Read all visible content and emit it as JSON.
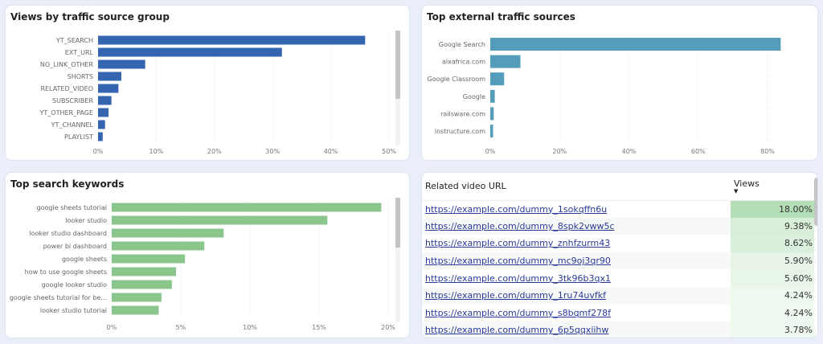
{
  "charts": [
    {
      "type": "bar",
      "orientation": "horizontal",
      "title": "Views by traffic source group",
      "color": "#3564b0",
      "categories": [
        "YT_SEARCH",
        "EXT_URL",
        "NO_LINK_OTHER",
        "SHORTS",
        "RELATED_VIDEO",
        "SUBSCRIBER",
        "YT_OTHER_PAGE",
        "YT_CHANNEL",
        "PLAYLIST"
      ],
      "values": [
        45.9,
        31.6,
        8.1,
        4.0,
        3.5,
        2.3,
        1.8,
        1.2,
        0.8
      ],
      "xlim": [
        0,
        50
      ],
      "ticks": [
        "0%",
        "10%",
        "20%",
        "30%",
        "40%",
        "50%"
      ],
      "tick_values": [
        0,
        10,
        20,
        30,
        40,
        50
      ],
      "grid": true
    },
    {
      "type": "bar",
      "orientation": "horizontal",
      "title": "Top external traffic sources",
      "color": "#539dba",
      "categories": [
        "Google Search",
        "alxafrica.com",
        "Google Classroom",
        "Google",
        "railsware.com",
        "instructure.com"
      ],
      "values": [
        83.8,
        8.7,
        4.0,
        1.3,
        1.0,
        0.8
      ],
      "xlim": [
        0,
        80
      ],
      "ticks": [
        "0%",
        "20%",
        "40%",
        "60%",
        "80%"
      ],
      "tick_values": [
        0,
        20,
        40,
        60,
        80
      ],
      "grid": true
    },
    {
      "type": "bar",
      "orientation": "horizontal",
      "title": "Top search keywords",
      "color": "#8ac68c",
      "categories": [
        "google sheets tutorial",
        "looker studio",
        "looker studio dashboard",
        "power bi dashboard",
        "google sheets",
        "how to use google sheets",
        "google looker studio",
        "google sheets tutorial for be...",
        "looker studio tutorial"
      ],
      "values": [
        19.5,
        15.6,
        8.1,
        6.7,
        5.3,
        4.65,
        4.35,
        3.6,
        3.4
      ],
      "xlim": [
        0,
        20
      ],
      "ticks": [
        "0%",
        "5%",
        "10%",
        "15%",
        "20%"
      ],
      "tick_values": [
        0,
        5,
        10,
        15,
        20
      ],
      "grid": true
    }
  ],
  "table": {
    "headers": {
      "url": "Related video URL",
      "views": "Views"
    },
    "sort": "descending",
    "heat_color": "#b5dfb7",
    "rows": [
      {
        "url": "https://example.com/dummy_1sokqffn6u",
        "views": "18.00%"
      },
      {
        "url": "https://example.com/dummy_8spk2vww5c",
        "views": "9.38%"
      },
      {
        "url": "https://example.com/dummy_znhfzurm43",
        "views": "8.62%"
      },
      {
        "url": "https://example.com/dummy_mc9oj3qr90",
        "views": "5.90%"
      },
      {
        "url": "https://example.com/dummy_3tk96b3qx1",
        "views": "5.60%"
      },
      {
        "url": "https://example.com/dummy_1ru74uvfkf",
        "views": "4.24%"
      },
      {
        "url": "https://example.com/dummy_s8bqmf278f",
        "views": "4.24%"
      },
      {
        "url": "https://example.com/dummy_6p5qqxiihw",
        "views": "3.78%"
      }
    ]
  }
}
